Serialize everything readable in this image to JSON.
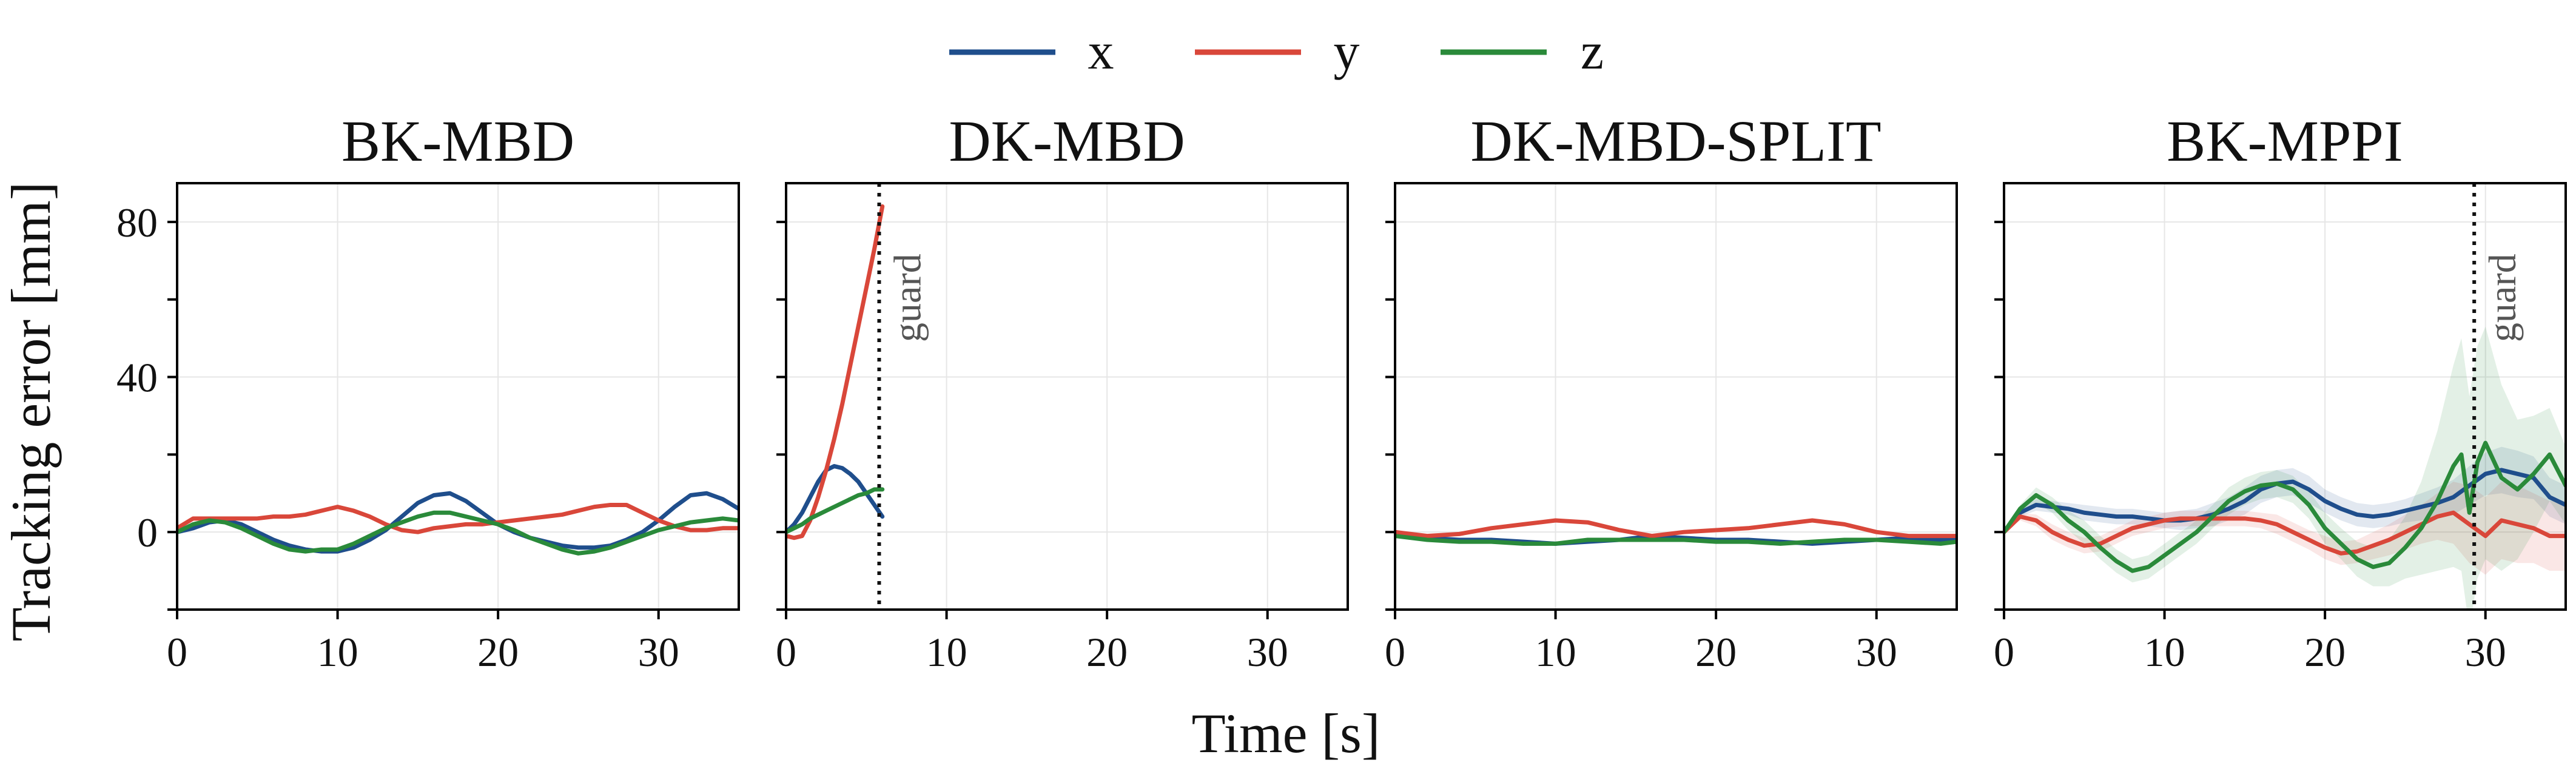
{
  "chart_data": {
    "type": "line",
    "ylabel": "Tracking error [mm]",
    "xlabel": "Time [s]",
    "xlim": [
      0,
      35
    ],
    "ylim": [
      -20,
      90
    ],
    "xticks": [
      0,
      10,
      20,
      30
    ],
    "yticks": [
      0,
      40,
      80
    ],
    "yminor_ticks": [
      -20,
      20,
      60
    ],
    "grid": true,
    "legend_position": "top-center",
    "legend": [
      {
        "name": "x",
        "color": "#1f4e8c"
      },
      {
        "name": "y",
        "color": "#d9473a"
      },
      {
        "name": "z",
        "color": "#2a8a3a"
      }
    ],
    "panels": [
      {
        "title": "BK-MBD",
        "series": [
          {
            "name": "x",
            "x": [
              0,
              1,
              2,
              3,
              4,
              5,
              6,
              7,
              8,
              9,
              10,
              11,
              12,
              13,
              14,
              15,
              16,
              17,
              18,
              19,
              20,
              21,
              22,
              23,
              24,
              25,
              26,
              27,
              28,
              29,
              30,
              31,
              32,
              33,
              34,
              35
            ],
            "y": [
              0,
              1,
              2.5,
              3,
              2,
              0,
              -2,
              -3.5,
              -4.5,
              -5,
              -5,
              -4,
              -2,
              0.5,
              4,
              7.5,
              9.5,
              10,
              8,
              5,
              2,
              0,
              -1.5,
              -2.5,
              -3.5,
              -4,
              -4,
              -3.5,
              -2,
              0,
              3,
              6.5,
              9.5,
              10,
              8.5,
              6
            ]
          },
          {
            "name": "y",
            "x": [
              0,
              1,
              2,
              3,
              4,
              5,
              6,
              7,
              8,
              9,
              10,
              11,
              12,
              13,
              14,
              15,
              16,
              17,
              18,
              19,
              20,
              21,
              22,
              23,
              24,
              25,
              26,
              27,
              28,
              29,
              30,
              31,
              32,
              33,
              34,
              35
            ],
            "y": [
              1,
              3.5,
              3.5,
              3.5,
              3.5,
              3.5,
              4,
              4,
              4.5,
              5.5,
              6.5,
              5.5,
              4,
              2,
              0.5,
              0,
              1,
              1.5,
              2,
              2,
              2.5,
              3,
              3.5,
              4,
              4.5,
              5.5,
              6.5,
              7,
              7,
              5,
              3,
              1.5,
              0.5,
              0.5,
              1,
              1
            ]
          },
          {
            "name": "z",
            "x": [
              0,
              1,
              2,
              3,
              4,
              5,
              6,
              7,
              8,
              9,
              10,
              11,
              12,
              13,
              14,
              15,
              16,
              17,
              18,
              19,
              20,
              21,
              22,
              23,
              24,
              25,
              26,
              27,
              28,
              29,
              30,
              31,
              32,
              33,
              34,
              35
            ],
            "y": [
              0,
              2,
              3,
              2.5,
              1,
              -1,
              -3,
              -4.5,
              -5,
              -4.5,
              -4.5,
              -3,
              -1,
              1,
              2.5,
              4,
              5,
              5,
              4,
              3,
              2,
              0.5,
              -1.5,
              -3,
              -4.5,
              -5.5,
              -5,
              -4,
              -2.5,
              -1,
              0.5,
              1.5,
              2.5,
              3,
              3.5,
              3
            ]
          }
        ]
      },
      {
        "title": "DK-MBD",
        "guard_time": 5.8,
        "guard_label": "guard",
        "series": [
          {
            "name": "x",
            "x": [
              0,
              0.5,
              1,
              1.5,
              2,
              2.5,
              3,
              3.5,
              4,
              4.5,
              5,
              5.5,
              6
            ],
            "y": [
              0,
              2,
              5,
              9,
              13,
              16,
              17,
              16.5,
              15,
              13,
              10,
              7,
              4
            ]
          },
          {
            "name": "y",
            "x": [
              0,
              0.5,
              1,
              1.5,
              2,
              2.5,
              3,
              3.5,
              4,
              4.5,
              5,
              5.5,
              6
            ],
            "y": [
              -1,
              -1.5,
              -1,
              3,
              9,
              16,
              24,
              33,
              43,
              53,
              63,
              73,
              84
            ]
          },
          {
            "name": "z",
            "x": [
              0,
              0.5,
              1,
              1.5,
              2,
              2.5,
              3,
              3.5,
              4,
              4.5,
              5,
              5.5,
              6
            ],
            "y": [
              0,
              1,
              2,
              3.5,
              4.5,
              5.5,
              6.5,
              7.5,
              8.5,
              9.5,
              10,
              11,
              11
            ]
          }
        ]
      },
      {
        "title": "DK-MBD-SPLIT",
        "series": [
          {
            "name": "x",
            "x": [
              0,
              2,
              4,
              6,
              8,
              10,
              12,
              14,
              16,
              18,
              20,
              22,
              24,
              26,
              28,
              30,
              32,
              34,
              35
            ],
            "y": [
              0,
              -1.5,
              -2,
              -2,
              -2.5,
              -3,
              -2.5,
              -2,
              -1,
              -1.5,
              -2,
              -2,
              -2.5,
              -3,
              -2.5,
              -2,
              -1.5,
              -2,
              -2
            ]
          },
          {
            "name": "y",
            "x": [
              0,
              2,
              4,
              6,
              8,
              10,
              12,
              14,
              16,
              18,
              20,
              22,
              24,
              26,
              28,
              30,
              32,
              34,
              35
            ],
            "y": [
              0,
              -1,
              -0.5,
              1,
              2,
              3,
              2.5,
              0.5,
              -1,
              0,
              0.5,
              1,
              2,
              3,
              2,
              0,
              -1,
              -1,
              -1
            ]
          },
          {
            "name": "z",
            "x": [
              0,
              2,
              4,
              6,
              8,
              10,
              12,
              14,
              16,
              18,
              20,
              22,
              24,
              26,
              28,
              30,
              32,
              34,
              35
            ],
            "y": [
              -1,
              -2,
              -2.5,
              -2.5,
              -3,
              -3,
              -2,
              -2,
              -2,
              -2,
              -2.5,
              -2.5,
              -3,
              -2.5,
              -2,
              -2,
              -2.5,
              -3,
              -2.5
            ]
          }
        ]
      },
      {
        "title": "BK-MPPI",
        "guard_time": 29.3,
        "guard_label": "guard",
        "series": [
          {
            "name": "x",
            "x": [
              0,
              1,
              2,
              3,
              4,
              5,
              6,
              7,
              8,
              9,
              10,
              11,
              12,
              13,
              14,
              15,
              16,
              17,
              18,
              19,
              20,
              21,
              22,
              23,
              24,
              25,
              26,
              27,
              28,
              29,
              30,
              31,
              32,
              33,
              34,
              35
            ],
            "y": [
              0,
              5,
              7,
              6.5,
              6,
              5,
              4.5,
              4,
              4,
              3.5,
              3,
              3,
              3.5,
              4.5,
              6,
              8,
              11,
              12.5,
              13,
              11,
              8,
              6,
              4.5,
              4,
              4.5,
              5.5,
              6.5,
              7.5,
              9,
              12,
              15,
              16,
              15,
              14,
              9,
              7
            ],
            "band": [
              0,
              1,
              1.5,
              1.5,
              1.5,
              2,
              2,
              2,
              2,
              2,
              2,
              2.5,
              2.5,
              3,
              3,
              3.5,
              3.5,
              3.5,
              3.5,
              3.5,
              3,
              3,
              3,
              3,
              3,
              3,
              3.5,
              4,
              4.5,
              5,
              5.5,
              6,
              6,
              5.5,
              5,
              5
            ]
          },
          {
            "name": "y",
            "x": [
              0,
              1,
              2,
              3,
              4,
              5,
              6,
              7,
              8,
              9,
              10,
              11,
              12,
              13,
              14,
              15,
              16,
              17,
              18,
              19,
              20,
              21,
              22,
              23,
              24,
              25,
              26,
              27,
              28,
              29,
              30,
              31,
              32,
              33,
              34,
              35
            ],
            "y": [
              0,
              4,
              3,
              0,
              -2,
              -3.5,
              -3,
              -1,
              1,
              2,
              3,
              3.5,
              3.5,
              3.5,
              3.5,
              3.5,
              3,
              2,
              0,
              -2,
              -4,
              -5.5,
              -5,
              -3.5,
              -2,
              0,
              2,
              4,
              5,
              2,
              -1,
              3,
              2,
              1,
              -1,
              -1
            ],
            "band": [
              0,
              1,
              1.5,
              2,
              2,
              2,
              2,
              2,
              2,
              2,
              2,
              2,
              2,
              2,
              2,
              2,
              2,
              2.5,
              2.5,
              2.5,
              3,
              3,
              3,
              3.5,
              4,
              4.5,
              5,
              6,
              8,
              10,
              10,
              10,
              10,
              9,
              9,
              9
            ]
          },
          {
            "name": "z",
            "x": [
              0,
              1,
              2,
              3,
              4,
              5,
              6,
              7,
              8,
              9,
              10,
              11,
              12,
              13,
              14,
              15,
              16,
              17,
              18,
              19,
              20,
              21,
              22,
              23,
              24,
              25,
              26,
              27,
              28,
              28.5,
              29,
              29.5,
              30,
              31,
              32,
              33,
              34,
              35
            ],
            "y": [
              0,
              6,
              9.5,
              7,
              3,
              0,
              -4,
              -7.5,
              -10,
              -9,
              -6,
              -3,
              0,
              4,
              8,
              10.5,
              12,
              12.5,
              11,
              7,
              1,
              -3,
              -7,
              -9,
              -8,
              -4,
              1,
              8,
              17,
              20,
              5,
              18,
              23,
              14,
              11,
              15,
              20,
              12
            ],
            "band": [
              0,
              1,
              2,
              2,
              2.5,
              3,
              3,
              3,
              3,
              3,
              3,
              3,
              3,
              3,
              3.5,
              3.5,
              3.5,
              3.5,
              3.5,
              3.5,
              4,
              4,
              4.5,
              5,
              6,
              8,
              12,
              18,
              26,
              30,
              30,
              30,
              30,
              24,
              18,
              15,
              12,
              10
            ]
          }
        ]
      }
    ]
  }
}
